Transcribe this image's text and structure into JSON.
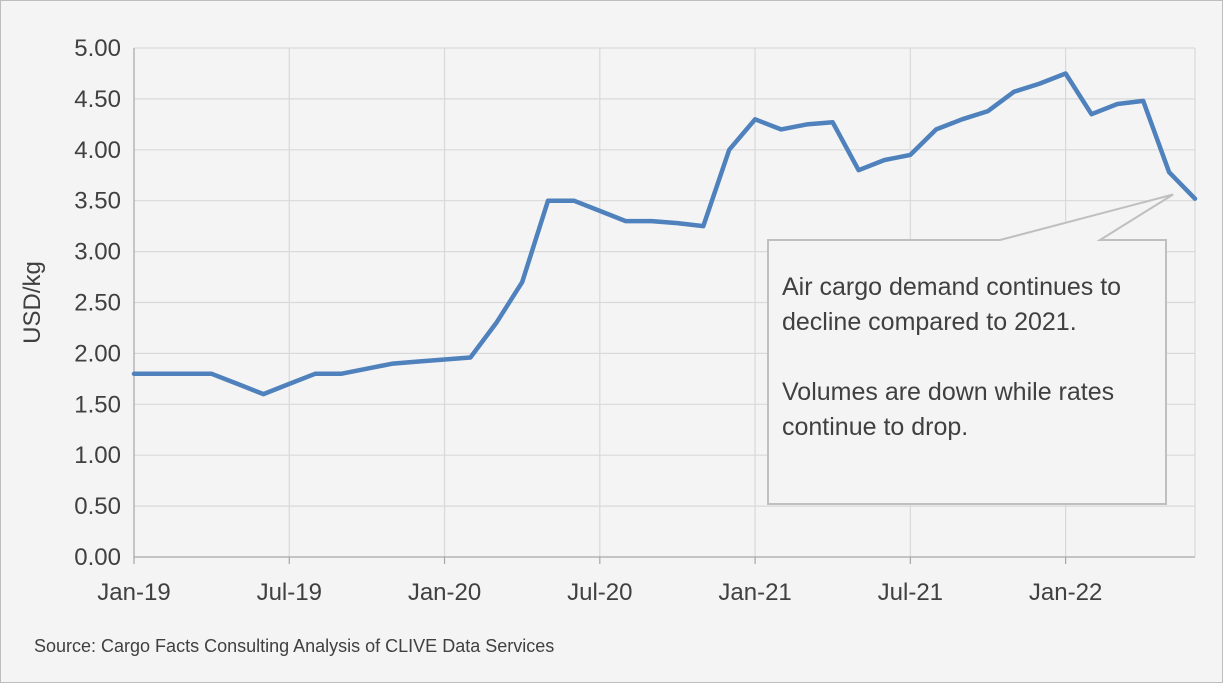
{
  "chart_data": {
    "type": "line",
    "title": "",
    "xlabel": "",
    "ylabel": "USD/kg",
    "ylim": [
      0,
      5
    ],
    "yticks": [
      "0.00",
      "0.50",
      "1.00",
      "1.50",
      "2.00",
      "2.50",
      "3.00",
      "3.50",
      "4.00",
      "4.50",
      "5.00"
    ],
    "x_tick_labels": [
      "Jan-19",
      "Jul-19",
      "Jan-20",
      "Jul-20",
      "Jan-21",
      "Jul-21",
      "Jan-22"
    ],
    "x_start": "2019-01",
    "x_end": "2022-06",
    "grid": true,
    "legend": "none",
    "line_color": "#4f81bd",
    "series": [
      {
        "x": [
          "2019-01",
          "2019-02",
          "2019-03",
          "2019-04",
          "2019-05",
          "2019-06",
          "2019-07",
          "2019-08",
          "2019-09",
          "2019-10",
          "2019-11",
          "2019-12",
          "2020-01",
          "2020-02",
          "2020-03",
          "2020-04",
          "2020-05",
          "2020-06",
          "2020-07",
          "2020-08",
          "2020-09",
          "2020-10",
          "2020-11",
          "2020-12",
          "2021-01",
          "2021-02",
          "2021-03",
          "2021-04",
          "2021-05",
          "2021-06",
          "2021-07",
          "2021-08",
          "2021-09",
          "2021-10",
          "2021-11",
          "2021-12",
          "2022-01",
          "2022-02",
          "2022-03",
          "2022-04",
          "2022-05",
          "2022-06"
        ],
        "values": [
          1.8,
          1.8,
          1.8,
          1.8,
          1.7,
          1.6,
          1.7,
          1.8,
          1.8,
          1.85,
          1.9,
          1.92,
          1.94,
          1.96,
          2.3,
          2.7,
          3.5,
          3.5,
          3.4,
          3.3,
          3.3,
          3.28,
          3.25,
          4.0,
          4.3,
          4.2,
          4.25,
          4.27,
          3.8,
          3.9,
          3.95,
          4.2,
          4.3,
          4.38,
          4.57,
          4.65,
          4.75,
          4.35,
          4.45,
          4.48,
          3.78,
          3.52
        ]
      }
    ],
    "annotations": [
      {
        "paragraphs": [
          "Air cargo demand continues to decline compared to 2021.",
          "Volumes are down while rates continue to drop."
        ],
        "points_to": {
          "x": "2022-05",
          "y": 3.6
        }
      }
    ]
  },
  "source": "Source: Cargo Facts Consulting Analysis of CLIVE Data Services"
}
